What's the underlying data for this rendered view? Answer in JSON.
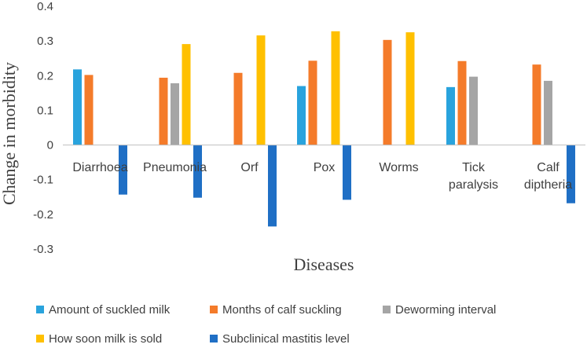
{
  "chart_data": {
    "type": "bar",
    "title": "",
    "xlabel": "Diseases",
    "ylabel": "Change in morbidity",
    "ylim": [
      -0.3,
      0.4
    ],
    "yticks": [
      -0.3,
      -0.2,
      -0.1,
      0,
      0.1,
      0.2,
      0.3,
      0.4
    ],
    "ytick_labels": [
      "-0.3",
      "-0.2",
      "-0.1",
      "0",
      "0.1",
      "0.2",
      "0.3",
      "0.4"
    ],
    "grid": false,
    "legend_position": "bottom",
    "categories": [
      [
        "Diarrhoea"
      ],
      [
        "Pneumonia"
      ],
      [
        "Orf"
      ],
      [
        "Pox"
      ],
      [
        "Worms"
      ],
      [
        "Tick",
        "paralysis"
      ],
      [
        "Calf",
        "diptheria"
      ]
    ],
    "series": [
      {
        "name": "Amount of suckled milk",
        "color": "#29a3dd",
        "values": [
          0.218,
          null,
          null,
          0.17,
          null,
          0.167,
          null
        ]
      },
      {
        "name": "Months of calf suckling",
        "color": "#f47b2a",
        "values": [
          0.202,
          0.194,
          0.208,
          0.243,
          0.303,
          0.242,
          0.232
        ]
      },
      {
        "name": "Deworming interval",
        "color": "#a5a5a5",
        "values": [
          null,
          0.178,
          null,
          null,
          null,
          0.197,
          0.185
        ]
      },
      {
        "name": "How soon milk is sold",
        "color": "#ffc000",
        "values": [
          null,
          0.291,
          0.316,
          0.328,
          0.325,
          null,
          null
        ]
      },
      {
        "name": "Subclinical mastitis level",
        "color": "#1f6fc5",
        "values": [
          -0.143,
          -0.152,
          -0.235,
          -0.158,
          null,
          null,
          -0.168
        ]
      }
    ]
  }
}
